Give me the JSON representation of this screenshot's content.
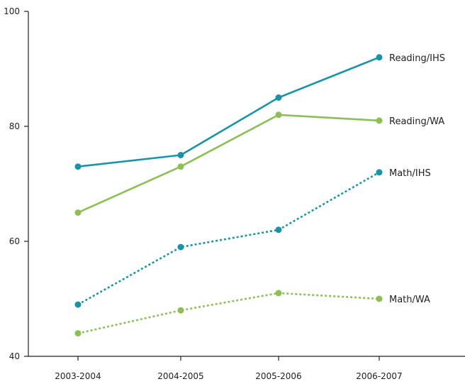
{
  "chart_data": {
    "type": "line",
    "categories": [
      "2003-2004",
      "2004-2005",
      "2005-2006",
      "2006-2007"
    ],
    "ylim": [
      40,
      100
    ],
    "yticks": [
      40,
      60,
      80,
      100
    ],
    "grid": false,
    "series": [
      {
        "name": "Reading/IHS",
        "values": [
          73,
          75,
          85,
          92
        ],
        "color": "#1a93a6",
        "dash": "solid"
      },
      {
        "name": "Reading/WA",
        "values": [
          65,
          73,
          82,
          81
        ],
        "color": "#8cbf56",
        "dash": "solid"
      },
      {
        "name": "Math/IHS",
        "values": [
          49,
          59,
          62,
          72
        ],
        "color": "#1a93a6",
        "dash": "dotted"
      },
      {
        "name": "Math/WA",
        "values": [
          44,
          48,
          51,
          50
        ],
        "color": "#8cbf56",
        "dash": "dotted"
      }
    ]
  }
}
